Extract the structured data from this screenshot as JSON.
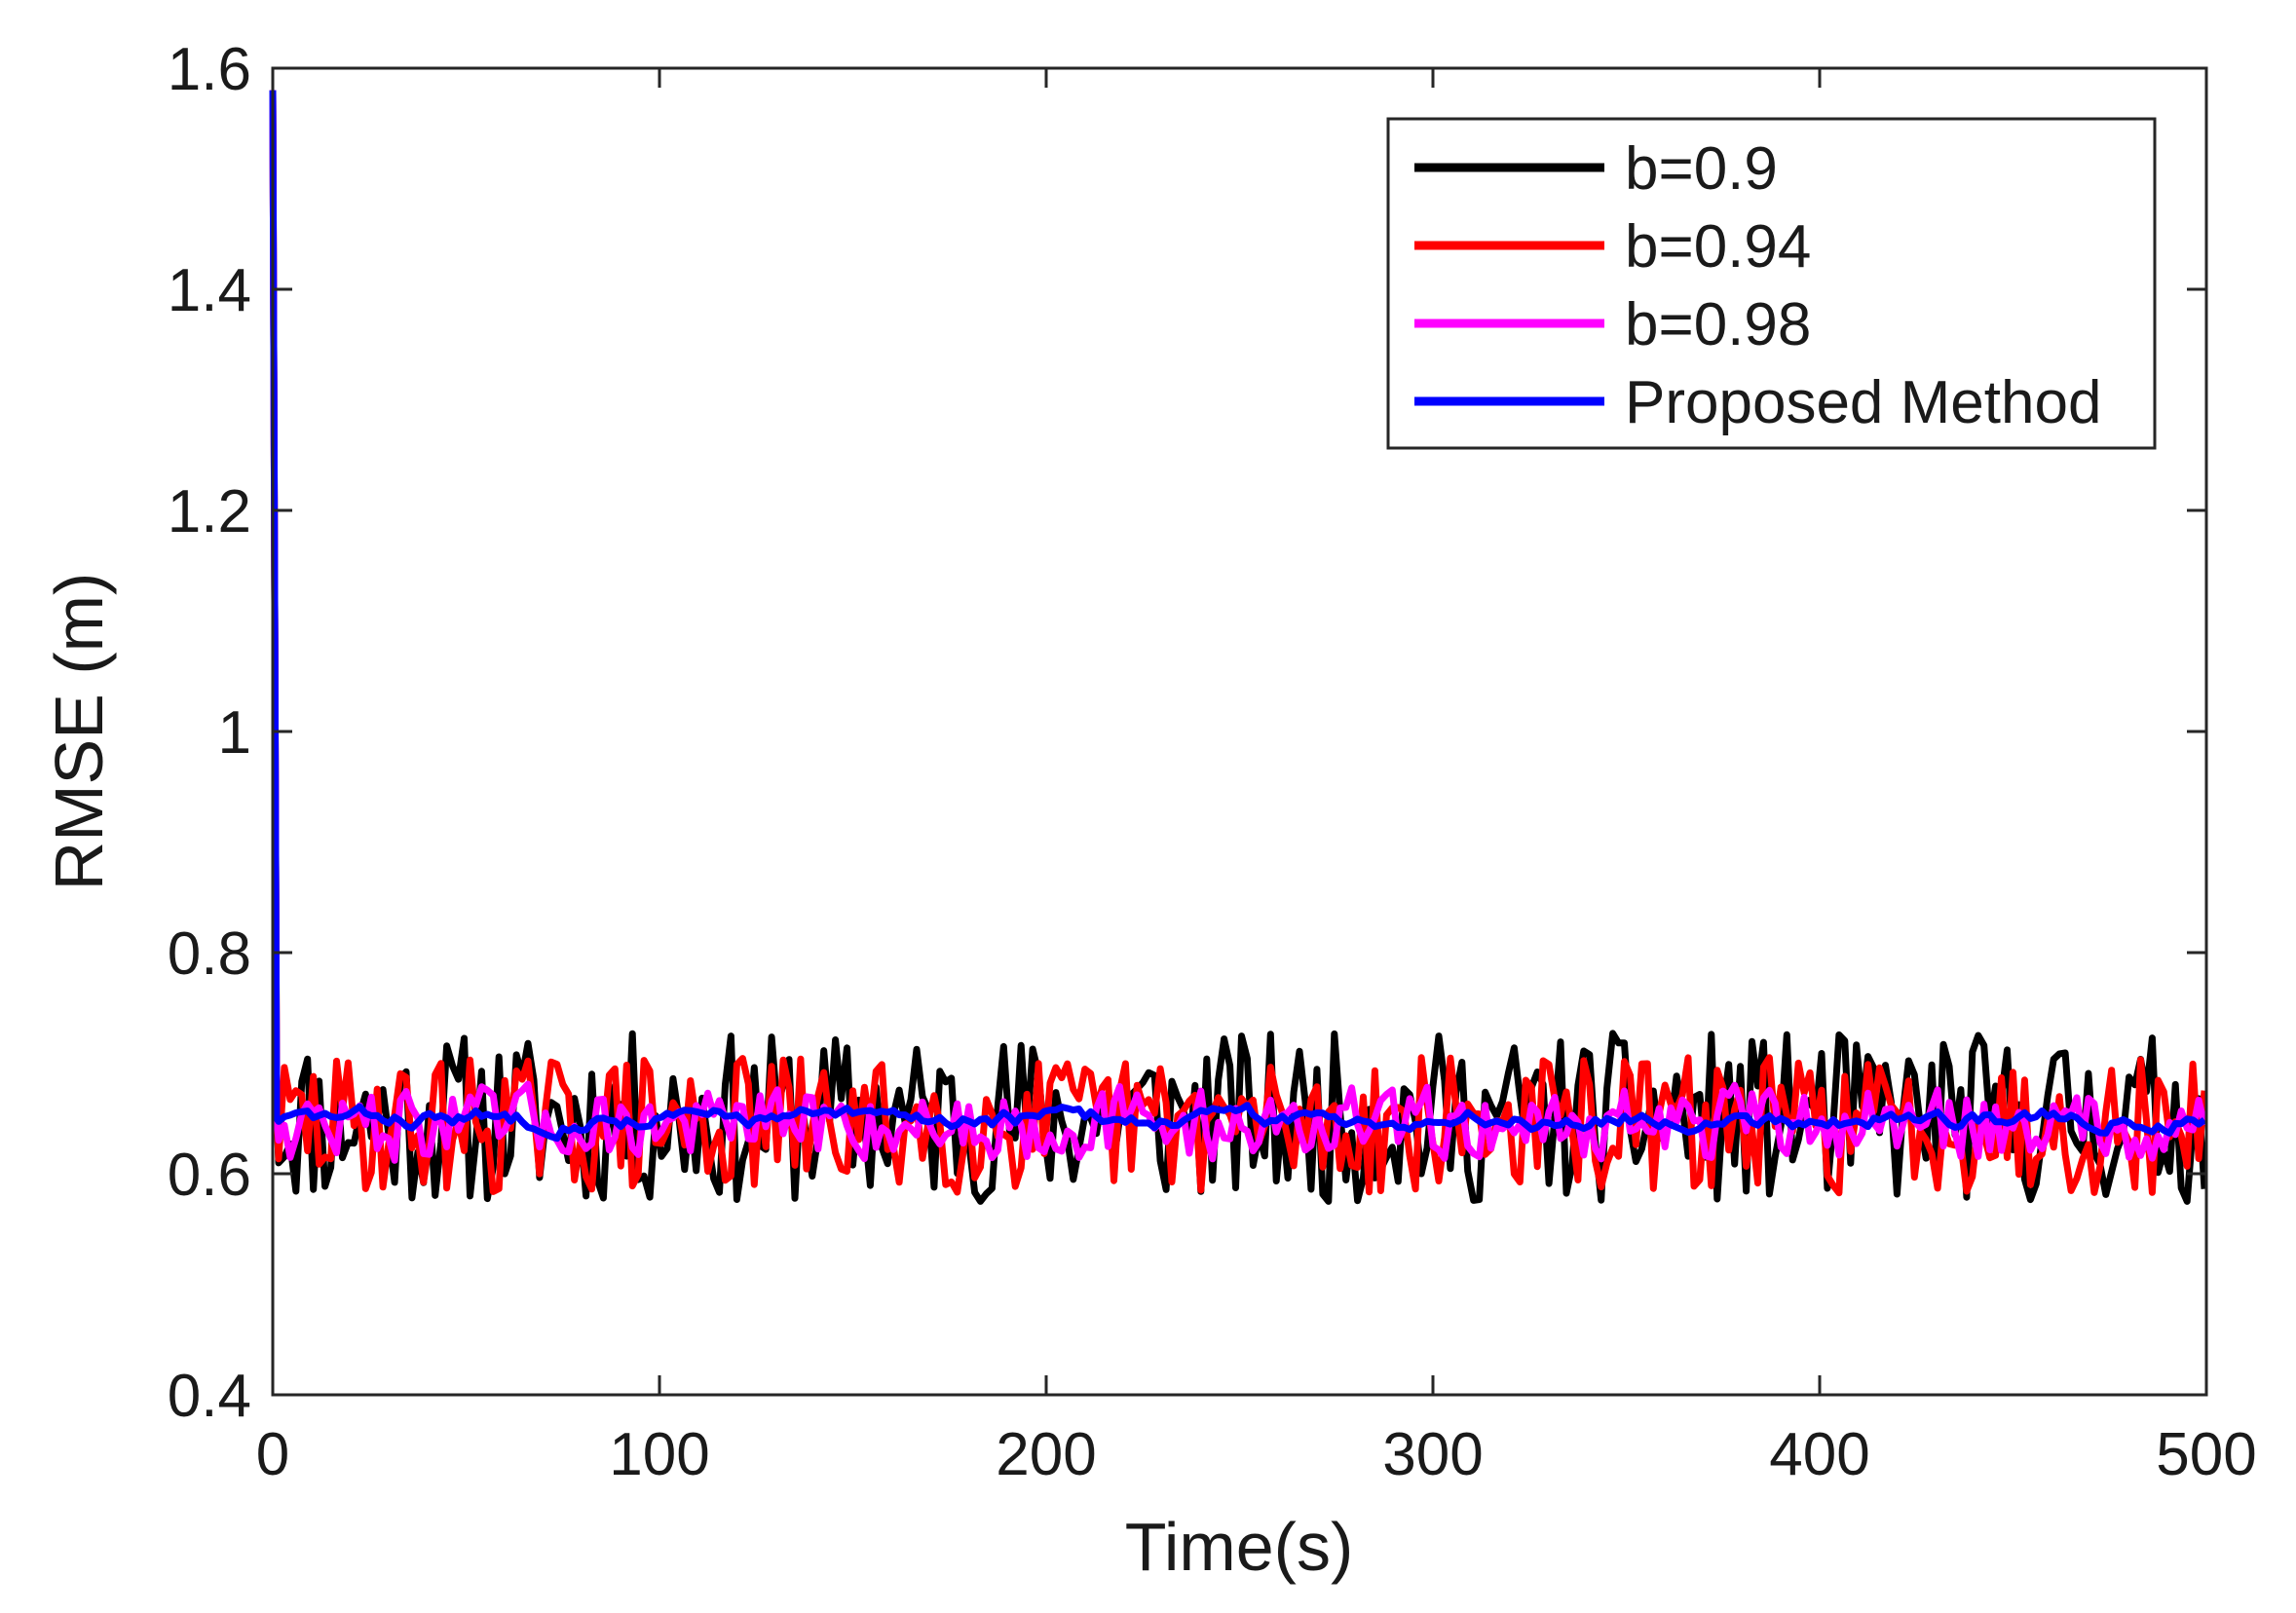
{
  "chart_data": {
    "type": "line",
    "title": "",
    "xlabel": "Time(s)",
    "ylabel": "RMSE (m)",
    "xlim": [
      0,
      500
    ],
    "ylim": [
      0.4,
      1.6
    ],
    "xticks": [
      0,
      100,
      200,
      300,
      400,
      500
    ],
    "yticks": [
      0.4,
      0.6,
      0.8,
      1,
      1.2,
      1.4,
      1.6
    ],
    "xtick_labels": [
      "0",
      "100",
      "200",
      "300",
      "400",
      "500"
    ],
    "ytick_labels": [
      "0.4",
      "0.6",
      "0.8",
      "1",
      "1.2",
      "1.4",
      "1.6"
    ],
    "grid": false,
    "legend_position": "top-right",
    "series": [
      {
        "name": "b=0.9",
        "color": "#000000",
        "initial_peak": {
          "x": [
            0,
            1
          ],
          "y": [
            1.58,
            0.66
          ]
        },
        "steady_mean": 0.65,
        "steady_range": [
          0.575,
          0.73
        ]
      },
      {
        "name": "b=0.94",
        "color": "#ff0000",
        "initial_peak": {
          "x": [
            0,
            1
          ],
          "y": [
            1.58,
            0.66
          ]
        },
        "steady_mean": 0.645,
        "steady_range": [
          0.58,
          0.705
        ]
      },
      {
        "name": "b=0.98",
        "color": "#ff00ff",
        "initial_peak": {
          "x": [
            0,
            1
          ],
          "y": [
            1.58,
            0.65
          ]
        },
        "steady_mean": 0.645,
        "steady_range": [
          0.605,
          0.685
        ]
      },
      {
        "name": "Proposed Method",
        "color": "#0000ff",
        "initial_peak": {
          "x": [
            0,
            1
          ],
          "y": [
            1.58,
            0.65
          ]
        },
        "steady_mean": 0.65,
        "steady_range": [
          0.625,
          0.672
        ]
      }
    ]
  }
}
